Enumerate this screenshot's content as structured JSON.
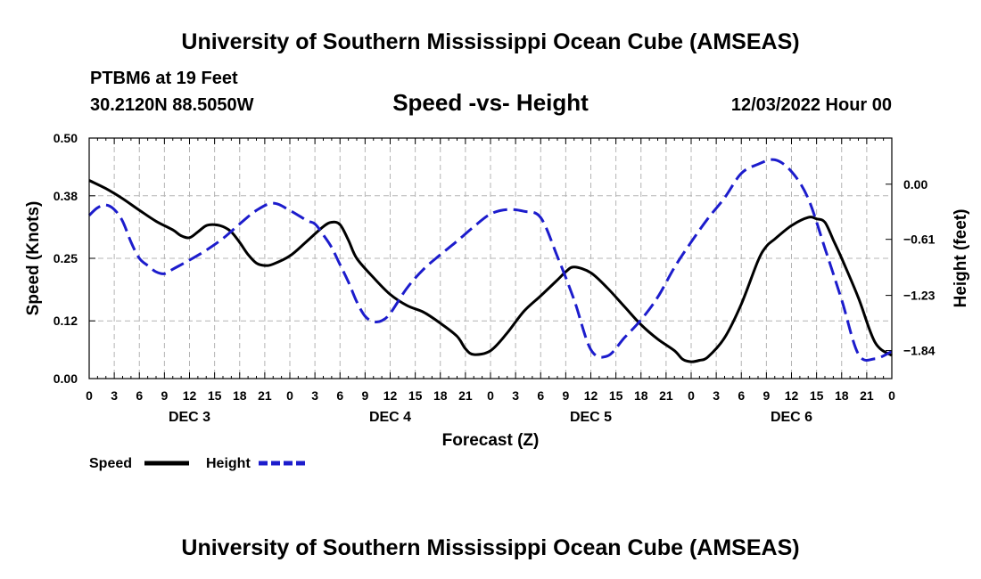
{
  "page": {
    "title_top": "University of Southern Mississippi Ocean Cube (AMSEAS)",
    "title_bottom": "University of Southern Mississippi Ocean Cube (AMSEAS)",
    "station": "PTBM6 at 19 Feet",
    "coords": "30.2120N  88.5050W",
    "date": "12/03/2022 Hour 00"
  },
  "colors": {
    "speed": "#000000",
    "height": "#1c1ccc",
    "grid": "#b4b4b4"
  },
  "chart_data": {
    "type": "line",
    "title": "Speed -vs- Height",
    "xlabel": "Forecast (Z)",
    "ylabel": "Speed (Knots)",
    "y2label": "Height (feet)",
    "x_hours_range": [
      0,
      96
    ],
    "ylim": [
      0,
      0.5
    ],
    "y2lim": [
      -2.15,
      0.51
    ],
    "y_ticks": [
      0.0,
      0.12,
      0.25,
      0.38,
      0.5
    ],
    "y_tick_labels": [
      "0.00",
      "0.12",
      "0.25",
      "0.38",
      "0.50"
    ],
    "y2_ticks": [
      -1.84,
      -1.23,
      -0.61,
      0.0
    ],
    "y2_tick_labels": [
      "−1.84",
      "−1.23",
      "−0.61",
      "0.00"
    ],
    "x_ticks": [
      0,
      3,
      6,
      9,
      12,
      15,
      18,
      21,
      24,
      27,
      30,
      33,
      36,
      39,
      42,
      45,
      48,
      51,
      54,
      57,
      60,
      63,
      66,
      69,
      72,
      75,
      78,
      81,
      84,
      87,
      90,
      93,
      96
    ],
    "x_tick_labels": [
      "0",
      "3",
      "6",
      "9",
      "12",
      "15",
      "18",
      "21",
      "0",
      "3",
      "6",
      "9",
      "12",
      "15",
      "18",
      "21",
      "0",
      "3",
      "6",
      "9",
      "12",
      "15",
      "18",
      "21",
      "0",
      "3",
      "6",
      "9",
      "12",
      "15",
      "18",
      "21",
      "0"
    ],
    "day_labels": [
      {
        "label": "DEC 3",
        "hour": 12
      },
      {
        "label": "DEC 4",
        "hour": 36
      },
      {
        "label": "DEC 5",
        "hour": 60
      },
      {
        "label": "DEC 6",
        "hour": 84
      }
    ],
    "series": [
      {
        "name": "Speed",
        "axis": "left",
        "style": "solid",
        "x": [
          0,
          2,
          4,
          6,
          8,
          10,
          11,
          12,
          13,
          14,
          15,
          16,
          17,
          18,
          19,
          20,
          21,
          22,
          24,
          26,
          28,
          29,
          30,
          31,
          32,
          34,
          36,
          38,
          40,
          42,
          44,
          45,
          46,
          48,
          50,
          52,
          54,
          56,
          57,
          58,
          60,
          62,
          64,
          66,
          68,
          70,
          71,
          72,
          73,
          74,
          76,
          78,
          80,
          81,
          82,
          84,
          86,
          87,
          88,
          89,
          90,
          92,
          94,
          96
        ],
        "values": [
          0.412,
          0.395,
          0.374,
          0.35,
          0.327,
          0.309,
          0.297,
          0.293,
          0.305,
          0.318,
          0.32,
          0.316,
          0.305,
          0.283,
          0.258,
          0.24,
          0.235,
          0.238,
          0.255,
          0.285,
          0.316,
          0.325,
          0.32,
          0.288,
          0.25,
          0.21,
          0.175,
          0.152,
          0.138,
          0.115,
          0.088,
          0.062,
          0.05,
          0.058,
          0.095,
          0.14,
          0.172,
          0.205,
          0.222,
          0.232,
          0.22,
          0.188,
          0.15,
          0.112,
          0.082,
          0.058,
          0.04,
          0.035,
          0.038,
          0.045,
          0.085,
          0.155,
          0.245,
          0.275,
          0.29,
          0.318,
          0.335,
          0.332,
          0.325,
          0.288,
          0.25,
          0.168,
          0.075,
          0.048
        ]
      },
      {
        "name": "Height",
        "axis": "right",
        "style": "dashed",
        "x": [
          0,
          1,
          2,
          3,
          4,
          5,
          6,
          7,
          8,
          9,
          10,
          12,
          14,
          16,
          18,
          20,
          22,
          24,
          26,
          27,
          28,
          29,
          30,
          31,
          32,
          33,
          34,
          35,
          36,
          38,
          40,
          42,
          44,
          46,
          48,
          50,
          52,
          54,
          56,
          58,
          60,
          62,
          64,
          66,
          68,
          70,
          72,
          74,
          76,
          78,
          80,
          82,
          84,
          86,
          88,
          90,
          92,
          94,
          96
        ],
        "values": [
          -0.345,
          -0.26,
          -0.23,
          -0.28,
          -0.41,
          -0.64,
          -0.82,
          -0.9,
          -0.97,
          -0.99,
          -0.94,
          -0.84,
          -0.73,
          -0.6,
          -0.44,
          -0.29,
          -0.21,
          -0.29,
          -0.4,
          -0.44,
          -0.56,
          -0.7,
          -0.89,
          -1.08,
          -1.3,
          -1.46,
          -1.52,
          -1.51,
          -1.43,
          -1.15,
          -0.94,
          -0.78,
          -0.63,
          -0.47,
          -0.33,
          -0.28,
          -0.3,
          -0.37,
          -0.8,
          -1.28,
          -1.83,
          -1.9,
          -1.7,
          -1.5,
          -1.25,
          -0.92,
          -0.64,
          -0.38,
          -0.15,
          0.12,
          0.22,
          0.27,
          0.14,
          -0.16,
          -0.71,
          -1.28,
          -1.88,
          -1.93,
          -1.85
        ]
      }
    ],
    "legend": [
      {
        "label": "Speed",
        "style": "solid"
      },
      {
        "label": "Height",
        "style": "dashed"
      }
    ]
  }
}
